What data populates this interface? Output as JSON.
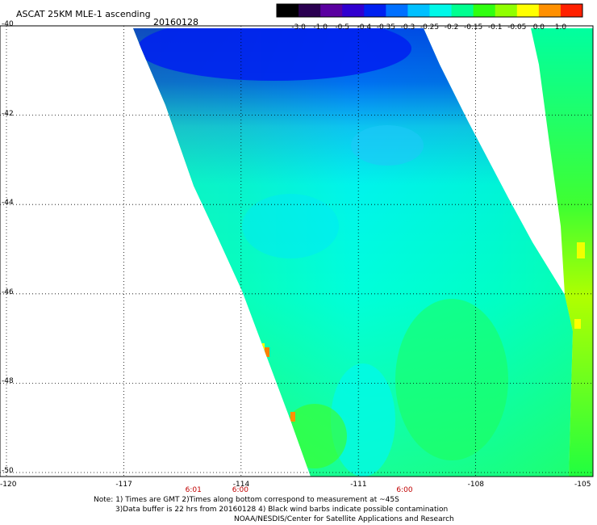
{
  "title": "ASCAT 25KM MLE-1 ascending",
  "date": "20160128",
  "colorbar": {
    "labels": [
      "-3.0",
      "-1.0",
      "-0.5",
      "-0.4",
      "-0.35",
      "-0.3",
      "-0.25",
      "-0.2",
      "-0.15",
      "-0.1",
      "-0.05",
      "0.0",
      "1.0"
    ],
    "colors": [
      "#000000",
      "#2a0050",
      "#5a00a0",
      "#3000d0",
      "#0020f0",
      "#0070ff",
      "#00c0ff",
      "#00f8e8",
      "#00ff90",
      "#30ff10",
      "#90ff00",
      "#ffff00",
      "#ff9000",
      "#ff2000"
    ]
  },
  "map": {
    "lat_labels": [
      "-40",
      "-42",
      "-44",
      "-46",
      "-48",
      "-50"
    ],
    "lon_labels": [
      "-120",
      "-117",
      "-114",
      "-111",
      "-108",
      "-105"
    ],
    "lat_values": [
      -40,
      -42,
      -44,
      -46,
      -48,
      -50
    ],
    "lon_values": [
      -120,
      -117,
      -114,
      -111,
      -108,
      -105
    ],
    "extent": {
      "lon_min": -120,
      "lon_max": -105,
      "lat_min": -50,
      "lat_max": -40
    }
  },
  "times": [
    {
      "label": "6:01",
      "lon": -115.2
    },
    {
      "label": "6:00",
      "lon": -114.0
    },
    {
      "label": "6:00",
      "lon": -109.8
    }
  ],
  "notes": [
    "Note: 1) Times are GMT 2)Times along bottom correspond to measurement at ~45S",
    "3)Data buffer is 22 hrs from 20160128 4) Black wind barbs indicate possible contamination",
    "NOAA/NESDIS/Center for Satellite Applications and Research"
  ]
}
